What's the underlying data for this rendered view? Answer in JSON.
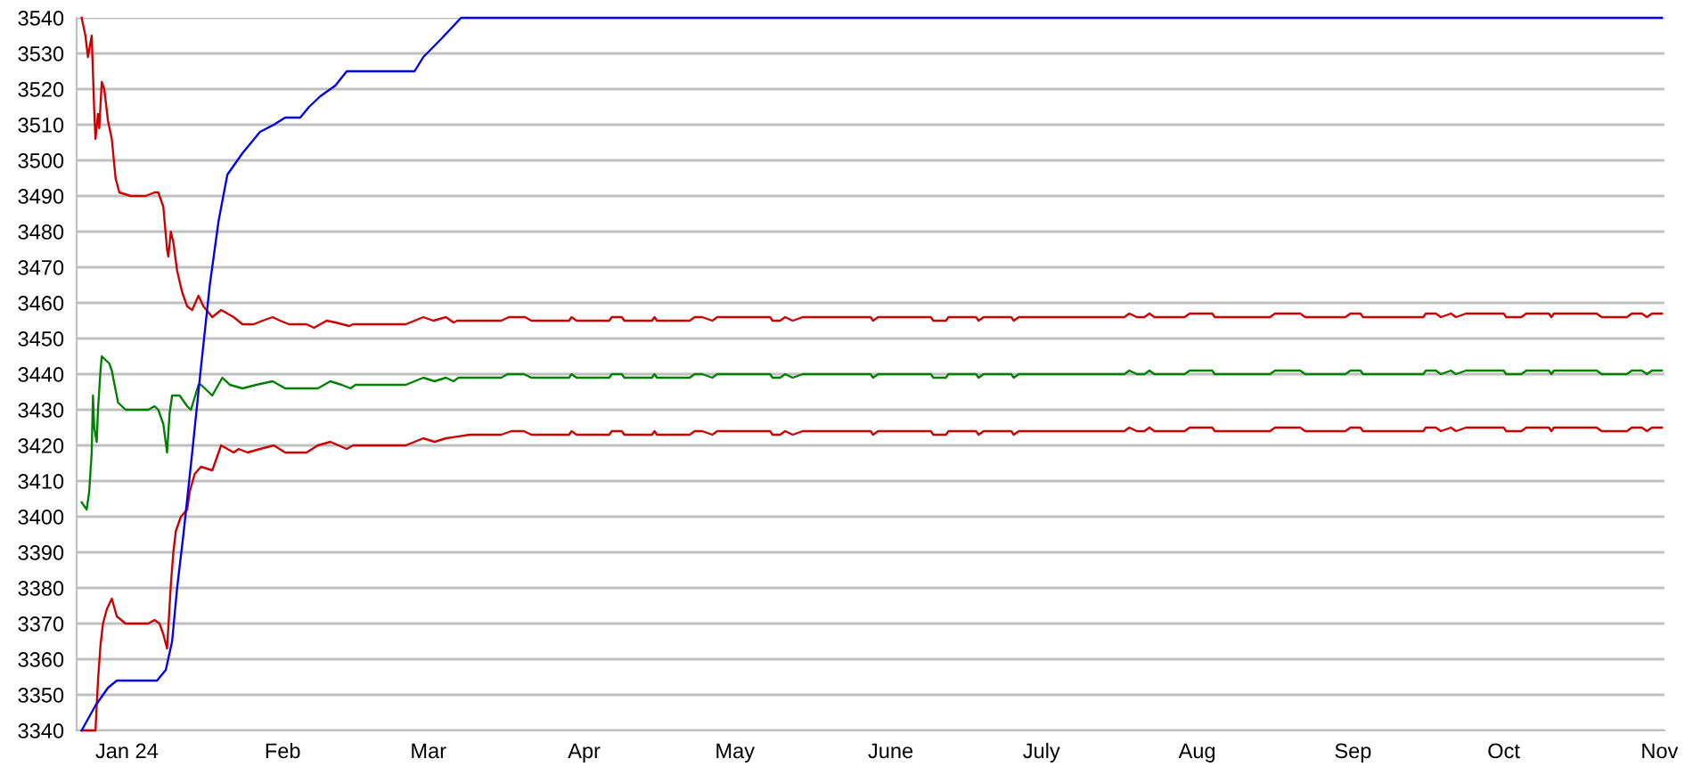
{
  "chart_data": {
    "type": "line",
    "xlim": [
      "2023-12-22",
      "2024-11-02"
    ],
    "xticks": [
      {
        "value": "2024-01-01",
        "label": "Jan 24"
      },
      {
        "value": "2024-02-01",
        "label": "Feb"
      },
      {
        "value": "2024-03-01",
        "label": "Mar"
      },
      {
        "value": "2024-04-01",
        "label": "Apr"
      },
      {
        "value": "2024-05-01",
        "label": "May"
      },
      {
        "value": "2024-06-01",
        "label": "June"
      },
      {
        "value": "2024-07-01",
        "label": "July"
      },
      {
        "value": "2024-08-01",
        "label": "Aug"
      },
      {
        "value": "2024-09-01",
        "label": "Sep"
      },
      {
        "value": "2024-10-01",
        "label": "Oct"
      },
      {
        "value": "2024-11-01",
        "label": "Nov"
      }
    ],
    "ylim": [
      3340,
      3540
    ],
    "yticks": [
      3340,
      3350,
      3360,
      3370,
      3380,
      3390,
      3400,
      3410,
      3420,
      3430,
      3440,
      3450,
      3460,
      3470,
      3480,
      3490,
      3500,
      3510,
      3520,
      3530,
      3540
    ],
    "grid": "y",
    "series": [
      {
        "color": "#cc0000",
        "x": [
          "2023-12-23T00:00",
          "2023-12-23T18:00",
          "2023-12-24T06:00",
          "2023-12-24T18:00",
          "2023-12-25T00:00",
          "2023-12-25T12:00",
          "2023-12-25T18:00",
          "2023-12-26T06:00",
          "2023-12-26T12:00",
          "2023-12-27T00:00",
          "2023-12-27T12:00",
          "2023-12-28T06:00",
          "2023-12-29T00:00",
          "2023-12-29T18:00",
          "2023-12-30T12:00",
          "2024-01-01T18:00",
          "2024-01-04T18:00",
          "2024-01-06T12:00",
          "2024-01-07T06:00",
          "2024-01-08T06:00",
          "2024-01-09T00:00",
          "2024-01-09T06:00",
          "2024-01-09T18:00",
          "2024-01-10T06:00",
          "2024-01-11T00:00",
          "2024-01-12T00:00",
          "2024-01-13T00:00",
          "2024-01-14T00:00",
          "2024-01-15T06:00",
          "2024-01-16T06:00",
          "2024-01-18T00:00",
          "2024-01-19T18:00",
          "2024-01-22T06:00",
          "2024-01-24T00:00",
          "2024-01-26T06:00",
          "2024-01-28T00:00",
          "2024-01-30T00:00",
          "2024-01-31T12:00",
          "2024-02-02T06:00",
          "2024-02-05T18:00",
          "2024-02-07T06:00",
          "2024-02-09T18:00",
          "2024-02-11T12:00",
          "2024-02-14T06:00",
          "2024-02-15T00:00",
          "2024-02-25T12:00",
          "2024-02-27T06:00",
          "2024-02-29T00:00",
          "2024-03-02T00:00",
          "2024-03-04T12:00",
          "2024-03-06T00:00",
          "2024-03-06T18:00",
          "2024-03-15T12:00",
          "2024-03-17T00:00",
          "2024-03-20T06:00",
          "2024-03-21T12:00",
          "2024-03-29T00:00",
          "2024-03-29T12:00",
          "2024-03-30T12:00",
          "2024-04-06T00:00",
          "2024-04-06T12:00",
          "2024-04-08T12:00",
          "2024-04-09T00:00",
          "2024-04-14T12:00",
          "2024-04-15T00:00",
          "2024-04-15T12:00",
          "2024-04-22T00:00",
          "2024-04-23T00:00",
          "2024-04-24T12:00",
          "2024-04-26T12:00",
          "2024-04-27T12:00",
          "2024-05-08T00:00",
          "2024-05-08T12:00",
          "2024-05-10T00:00",
          "2024-05-11T00:00",
          "2024-05-12T12:00",
          "2024-05-14T12:00",
          "2024-05-28T00:00",
          "2024-05-28T12:00",
          "2024-05-29T12:00",
          "2024-06-09T00:00",
          "2024-06-09T12:00",
          "2024-06-12T00:00",
          "2024-06-12T12:00",
          "2024-06-18T00:00",
          "2024-06-18T12:00",
          "2024-06-19T12:00",
          "2024-06-25T00:00",
          "2024-06-25T12:00",
          "2024-06-26T12:00",
          "2024-07-10T12:00",
          "2024-07-17T12:00",
          "2024-07-18T12:00",
          "2024-07-20T00:00",
          "2024-07-21T12:00",
          "2024-07-22T12:00",
          "2024-07-23T12:00",
          "2024-07-29T12:00",
          "2024-07-30T12:00",
          "2024-08-04T00:00",
          "2024-08-04T12:00",
          "2024-08-15T12:00",
          "2024-08-16T12:00",
          "2024-08-21T12:00",
          "2024-08-22T12:00",
          "2024-08-30T12:00",
          "2024-08-31T12:00",
          "2024-09-02T12:00",
          "2024-09-03T00:00",
          "2024-09-15T00:00",
          "2024-09-15T12:00",
          "2024-09-17T12:00",
          "2024-09-18T12:00",
          "2024-09-20T12:00",
          "2024-09-21T12:00",
          "2024-09-23T12:00",
          "2024-10-01T00:00",
          "2024-10-01T12:00",
          "2024-10-04T12:00",
          "2024-10-05T12:00",
          "2024-10-10T00:00",
          "2024-10-10T12:00",
          "2024-10-11T00:00",
          "2024-10-19T12:00",
          "2024-10-20T12:00",
          "2024-10-25T12:00",
          "2024-10-26T12:00",
          "2024-10-28T12:00",
          "2024-10-29T12:00",
          "2024-10-30T12:00",
          "2024-11-01T12:00"
        ],
        "values": [
          3540,
          3535,
          3529,
          3533,
          3535,
          3514,
          3506,
          3513,
          3509,
          3522,
          3520,
          3511,
          3506,
          3495,
          3491,
          3490,
          3490,
          3491,
          3491,
          3487,
          3475,
          3473,
          3480,
          3477,
          3469,
          3463,
          3459,
          3458,
          3462,
          3459,
          3456,
          3458,
          3456,
          3454,
          3454,
          3455,
          3456,
          3455,
          3454,
          3454,
          3453,
          3455,
          3454.5,
          3453.5,
          3454,
          3454,
          3455,
          3456,
          3455,
          3456,
          3454.5,
          3455,
          3455,
          3456,
          3456,
          3455,
          3455,
          3456,
          3455,
          3455,
          3456,
          3456,
          3455,
          3455,
          3456,
          3455,
          3455,
          3456,
          3456,
          3455,
          3456,
          3456,
          3455,
          3455,
          3456,
          3455,
          3456,
          3456,
          3455,
          3456,
          3456,
          3455,
          3455,
          3456,
          3456,
          3455,
          3456,
          3456,
          3455,
          3456,
          3456,
          3456,
          3457,
          3456,
          3456,
          3457,
          3456,
          3456,
          3457,
          3457,
          3456,
          3456,
          3457,
          3457,
          3456,
          3456,
          3457,
          3457,
          3456,
          3456,
          3457,
          3457,
          3456,
          3457,
          3456,
          3457,
          3457,
          3456,
          3456,
          3457,
          3457,
          3456,
          3457,
          3457,
          3456,
          3456,
          3457,
          3457,
          3456,
          3457,
          3457
        ]
      },
      {
        "color": "#008000",
        "x": [
          "2023-12-23T00:00",
          "2023-12-24T00:00",
          "2023-12-24T12:00",
          "2023-12-25T00:00",
          "2023-12-25T06:00",
          "2023-12-25T12:00",
          "2023-12-26T00:00",
          "2023-12-26T06:00",
          "2023-12-26T18:00",
          "2023-12-27T00:00",
          "2023-12-28T12:00",
          "2023-12-29T00:00",
          "2023-12-30T06:00",
          "2023-12-31T18:00",
          "2024-01-05T06:00",
          "2024-01-06T12:00",
          "2024-01-07T06:00",
          "2024-01-08T06:00",
          "2024-01-09T00:00",
          "2024-01-09T12:00",
          "2024-01-10T00:00",
          "2024-01-11T12:00",
          "2024-01-13T00:00",
          "2024-01-13T18:00",
          "2024-01-15T06:00",
          "2024-01-15T18:00",
          "2024-01-18T00:00",
          "2024-01-20T00:00",
          "2024-01-21T12:00",
          "2024-01-24T00:00",
          "2024-01-26T18:00",
          "2024-01-30T00:00",
          "2024-02-01T12:00",
          "2024-02-08T00:00",
          "2024-02-10T12:00",
          "2024-02-12T18:00",
          "2024-02-14T12:00",
          "2024-02-15T12:00",
          "2024-02-25T12:00",
          "2024-02-27T06:00",
          "2024-02-29T00:00",
          "2024-03-02T06:00",
          "2024-03-04T12:00",
          "2024-03-06T00:00",
          "2024-03-07T00:00",
          "2024-03-15T12:00",
          "2024-03-16T18:00",
          "2024-03-20T00:00",
          "2024-03-21T12:00",
          "2024-03-29T00:00",
          "2024-03-29T12:00",
          "2024-03-30T12:00",
          "2024-04-06T00:00",
          "2024-04-06T12:00",
          "2024-04-08T12:00",
          "2024-04-09T00:00",
          "2024-04-14T12:00",
          "2024-04-15T00:00",
          "2024-04-15T12:00",
          "2024-04-22T00:00",
          "2024-04-23T00:00",
          "2024-04-24T12:00",
          "2024-04-26T12:00",
          "2024-04-27T12:00",
          "2024-05-08T00:00",
          "2024-05-08T12:00",
          "2024-05-10T00:00",
          "2024-05-11T00:00",
          "2024-05-12T12:00",
          "2024-05-14T12:00",
          "2024-05-28T00:00",
          "2024-05-28T12:00",
          "2024-05-29T12:00",
          "2024-06-09T00:00",
          "2024-06-09T12:00",
          "2024-06-12T00:00",
          "2024-06-12T12:00",
          "2024-06-18T00:00",
          "2024-06-18T12:00",
          "2024-06-19T12:00",
          "2024-06-25T00:00",
          "2024-06-25T12:00",
          "2024-06-26T12:00",
          "2024-07-10T12:00",
          "2024-07-17T12:00",
          "2024-07-18T12:00",
          "2024-07-20T00:00",
          "2024-07-21T12:00",
          "2024-07-22T12:00",
          "2024-07-23T12:00",
          "2024-07-29T12:00",
          "2024-07-30T12:00",
          "2024-08-04T00:00",
          "2024-08-04T12:00",
          "2024-08-15T12:00",
          "2024-08-16T12:00",
          "2024-08-21T12:00",
          "2024-08-22T12:00",
          "2024-08-30T12:00",
          "2024-08-31T12:00",
          "2024-09-02T12:00",
          "2024-09-03T00:00",
          "2024-09-15T00:00",
          "2024-09-15T12:00",
          "2024-09-17T12:00",
          "2024-09-18T12:00",
          "2024-09-20T12:00",
          "2024-09-21T12:00",
          "2024-09-23T12:00",
          "2024-10-01T00:00",
          "2024-10-01T12:00",
          "2024-10-04T12:00",
          "2024-10-05T12:00",
          "2024-10-10T00:00",
          "2024-10-10T12:00",
          "2024-10-11T00:00",
          "2024-10-19T12:00",
          "2024-10-20T12:00",
          "2024-10-25T12:00",
          "2024-10-26T12:00",
          "2024-10-28T12:00",
          "2024-10-29T12:00",
          "2024-10-30T12:00",
          "2024-11-01T12:00"
        ],
        "values": [
          3404,
          3402,
          3407,
          3418,
          3434,
          3425,
          3421,
          3430,
          3441,
          3445,
          3443,
          3441,
          3432,
          3430,
          3430,
          3431,
          3430,
          3426,
          3418,
          3429,
          3434,
          3434,
          3431,
          3430,
          3437,
          3437,
          3434,
          3439,
          3437,
          3436,
          3437,
          3438,
          3436,
          3436,
          3438,
          3437,
          3436,
          3437,
          3437,
          3438,
          3439,
          3438,
          3439,
          3438,
          3439,
          3439,
          3440,
          3440,
          3439,
          3439,
          3440,
          3439,
          3439,
          3440,
          3440,
          3439,
          3439,
          3440,
          3439,
          3439,
          3440,
          3440,
          3439,
          3440,
          3440,
          3439,
          3439,
          3440,
          3439,
          3440,
          3440,
          3439,
          3440,
          3440,
          3439,
          3439,
          3440,
          3440,
          3439,
          3440,
          3440,
          3439,
          3440,
          3440,
          3440,
          3441,
          3440,
          3440,
          3441,
          3440,
          3440,
          3441,
          3441,
          3440,
          3440,
          3441,
          3441,
          3440,
          3440,
          3441,
          3441,
          3440,
          3440,
          3441,
          3441,
          3440,
          3441,
          3440,
          3441,
          3441,
          3440,
          3440,
          3441,
          3441,
          3440,
          3441,
          3441,
          3440,
          3440,
          3441,
          3441,
          3440,
          3441,
          3441
        ]
      },
      {
        "color": "#cc0000",
        "x": [
          "2023-12-23T00:00",
          "2023-12-25T18:00",
          "2023-12-26T06:00",
          "2023-12-26T18:00",
          "2023-12-27T06:00",
          "2023-12-28T00:00",
          "2023-12-29T00:00",
          "2023-12-30T00:00",
          "2023-12-31T18:00",
          "2024-01-05T06:00",
          "2024-01-06T12:00",
          "2024-01-07T12:00",
          "2024-01-08T06:00",
          "2024-01-09T00:00",
          "2024-01-09T18:00",
          "2024-01-10T06:00",
          "2024-01-10T18:00",
          "2024-01-11T18:00",
          "2024-01-13T00:00",
          "2024-01-13T12:00",
          "2024-01-14T12:00",
          "2024-01-15T18:00",
          "2024-01-18T00:00",
          "2024-01-19T00:00",
          "2024-01-19T18:00",
          "2024-01-21T00:00",
          "2024-01-22T06:00",
          "2024-01-23T06:00",
          "2024-01-25T00:00",
          "2024-01-27T12:00",
          "2024-01-30T06:00",
          "2024-02-01T12:00",
          "2024-02-05T18:00",
          "2024-02-08T00:00",
          "2024-02-10T12:00",
          "2024-02-13T18:00",
          "2024-02-15T00:00",
          "2024-02-25T12:00",
          "2024-02-29T00:00",
          "2024-03-02T06:00",
          "2024-03-04T12:00",
          "2024-03-09T06:00",
          "2024-03-15T12:00",
          "2024-03-17T12:00",
          "2024-03-20T00:00",
          "2024-03-21T12:00",
          "2024-03-29T00:00",
          "2024-03-29T12:00",
          "2024-03-30T12:00",
          "2024-04-06T00:00",
          "2024-04-06T12:00",
          "2024-04-08T12:00",
          "2024-04-09T00:00",
          "2024-04-14T12:00",
          "2024-04-15T00:00",
          "2024-04-15T12:00",
          "2024-04-22T00:00",
          "2024-04-23T00:00",
          "2024-04-24T12:00",
          "2024-04-26T12:00",
          "2024-04-27T12:00",
          "2024-05-08T00:00",
          "2024-05-08T12:00",
          "2024-05-10T00:00",
          "2024-05-11T00:00",
          "2024-05-12T12:00",
          "2024-05-14T12:00",
          "2024-05-28T00:00",
          "2024-05-28T12:00",
          "2024-05-29T12:00",
          "2024-06-09T00:00",
          "2024-06-09T12:00",
          "2024-06-12T00:00",
          "2024-06-12T12:00",
          "2024-06-18T00:00",
          "2024-06-18T12:00",
          "2024-06-19T12:00",
          "2024-06-25T00:00",
          "2024-06-25T12:00",
          "2024-06-26T12:00",
          "2024-07-10T12:00",
          "2024-07-17T12:00",
          "2024-07-18T12:00",
          "2024-07-20T00:00",
          "2024-07-21T12:00",
          "2024-07-22T12:00",
          "2024-07-23T12:00",
          "2024-07-29T12:00",
          "2024-07-30T12:00",
          "2024-08-04T00:00",
          "2024-08-04T12:00",
          "2024-08-15T12:00",
          "2024-08-16T12:00",
          "2024-08-21T12:00",
          "2024-08-22T12:00",
          "2024-08-30T12:00",
          "2024-08-31T12:00",
          "2024-09-02T12:00",
          "2024-09-03T00:00",
          "2024-09-15T00:00",
          "2024-09-15T12:00",
          "2024-09-17T12:00",
          "2024-09-18T12:00",
          "2024-09-20T12:00",
          "2024-09-21T12:00",
          "2024-09-23T12:00",
          "2024-10-01T00:00",
          "2024-10-01T12:00",
          "2024-10-04T12:00",
          "2024-10-05T12:00",
          "2024-10-10T00:00",
          "2024-10-10T12:00",
          "2024-10-11T00:00",
          "2024-10-19T12:00",
          "2024-10-20T12:00",
          "2024-10-25T12:00",
          "2024-10-26T12:00",
          "2024-10-28T12:00",
          "2024-10-29T12:00",
          "2024-10-30T12:00",
          "2024-11-01T12:00"
        ],
        "values": [
          3340,
          3340,
          3354,
          3364,
          3370,
          3374,
          3377,
          3372,
          3370,
          3370,
          3371,
          3370,
          3367,
          3363,
          3381,
          3390,
          3396,
          3400,
          3402,
          3407,
          3412,
          3414,
          3413,
          3417,
          3420,
          3419,
          3418,
          3419,
          3418,
          3419,
          3420,
          3418,
          3418,
          3420,
          3421,
          3419,
          3420,
          3420,
          3422,
          3421,
          3422,
          3423,
          3423,
          3424,
          3424,
          3423,
          3423,
          3424,
          3423,
          3423,
          3424,
          3424,
          3423,
          3423,
          3424,
          3423,
          3423,
          3424,
          3424,
          3423,
          3424,
          3424,
          3423,
          3423,
          3424,
          3423,
          3424,
          3424,
          3423,
          3424,
          3424,
          3423,
          3423,
          3424,
          3424,
          3423,
          3424,
          3424,
          3423,
          3424,
          3424,
          3424,
          3425,
          3424,
          3424,
          3425,
          3424,
          3424,
          3425,
          3425,
          3424,
          3424,
          3425,
          3425,
          3424,
          3424,
          3425,
          3425,
          3424,
          3424,
          3425,
          3425,
          3424,
          3425,
          3424,
          3425,
          3425,
          3424,
          3424,
          3425,
          3425,
          3424,
          3425,
          3425,
          3424,
          3424,
          3425,
          3425,
          3424,
          3425,
          3425
        ]
      },
      {
        "color": "#0000ee",
        "x": [
          "2023-12-23T00:00",
          "2023-12-25T18:00",
          "2023-12-28T06:00",
          "2023-12-30T00:00",
          "2024-01-07T00:00",
          "2024-01-08T18:00",
          "2024-01-10T00:00",
          "2024-01-11T00:00",
          "2024-01-12T06:00",
          "2024-01-14T00:00",
          "2024-01-15T18:00",
          "2024-01-17T12:00",
          "2024-01-19T06:00",
          "2024-01-21T00:00",
          "2024-01-24T00:00",
          "2024-01-27T12:00",
          "2024-01-30T06:00",
          "2024-02-01T12:00",
          "2024-02-04T12:00",
          "2024-02-06T06:00",
          "2024-02-08T12:00",
          "2024-02-11T12:00",
          "2024-02-13T18:00",
          "2024-02-27T06:00",
          "2024-02-29T00:00",
          "2024-03-03T12:00",
          "2024-03-07T12:00",
          "2024-11-01T12:00"
        ],
        "values": [
          3340,
          3347,
          3352,
          3354,
          3354,
          3357,
          3365,
          3380,
          3395,
          3418,
          3442,
          3465,
          3483,
          3496,
          3502,
          3508,
          3510,
          3512,
          3512,
          3515,
          3518,
          3521,
          3525,
          3525,
          3529,
          3534,
          3540,
          3540
        ]
      }
    ]
  }
}
